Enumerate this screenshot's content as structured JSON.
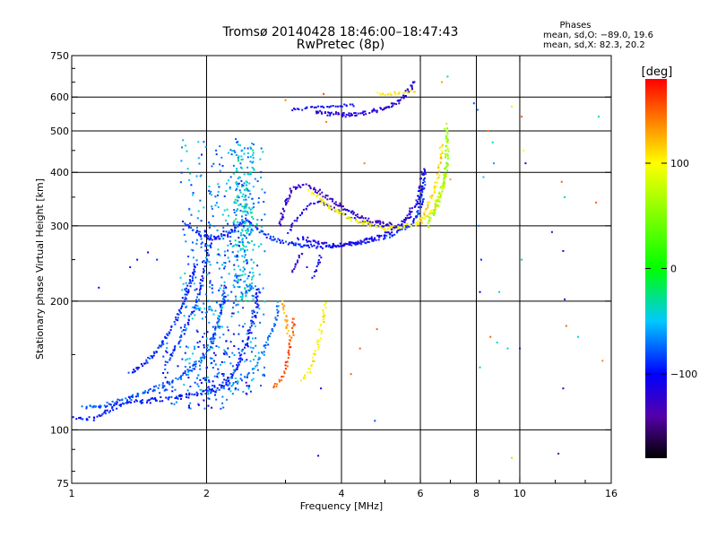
{
  "chart_data": {
    "type": "scatter",
    "title": "Tromsø 20140428 18:46:00–18:47:43",
    "subtitle": "RwPretec (8p)",
    "stats": {
      "heading": "Phases",
      "line1": "mean, sd,O: −89.0, 19.6",
      "line2": "mean, sd,X:  82.3, 20.2"
    },
    "xlabel": "Frequency [MHz]",
    "ylabel": "Stationary phase Virtual Height [km]",
    "x_scale": "log",
    "y_scale": "log",
    "xlim": [
      1,
      16
    ],
    "ylim": [
      75,
      750
    ],
    "grid": true,
    "x_ticks": [
      {
        "v": 1,
        "label": "1"
      },
      {
        "v": 2,
        "label": "2"
      },
      {
        "v": 4,
        "label": "4"
      },
      {
        "v": 6,
        "label": "6"
      },
      {
        "v": 8,
        "label": "8"
      },
      {
        "v": 10,
        "label": "10"
      },
      {
        "v": 16,
        "label": "16"
      }
    ],
    "x_grid": [
      2,
      4,
      6,
      8,
      10
    ],
    "y_ticks": [
      {
        "v": 75,
        "label": "75"
      },
      {
        "v": 100,
        "label": "100"
      },
      {
        "v": 200,
        "label": "200"
      },
      {
        "v": 300,
        "label": "300"
      },
      {
        "v": 400,
        "label": "400"
      },
      {
        "v": 500,
        "label": "500"
      },
      {
        "v": 600,
        "label": "600"
      },
      {
        "v": 750,
        "label": "750"
      }
    ],
    "y_grid": [
      100,
      200,
      300,
      400,
      500,
      600
    ],
    "colorbar": {
      "label": "[deg]",
      "range": [
        -180,
        180
      ],
      "ticks": [
        {
          "v": 100,
          "label": "100"
        },
        {
          "v": 0,
          "label": "0"
        },
        {
          "v": -100,
          "label": "−100"
        }
      ],
      "stops": [
        {
          "v": -180,
          "color": "#000000"
        },
        {
          "v": -140,
          "color": "#5500aa"
        },
        {
          "v": -100,
          "color": "#0000ff"
        },
        {
          "v": -50,
          "color": "#00c8ff"
        },
        {
          "v": 0,
          "color": "#00ff00"
        },
        {
          "v": 100,
          "color": "#ffff00"
        },
        {
          "v": 140,
          "color": "#ff8000"
        },
        {
          "v": 180,
          "color": "#ff0000"
        }
      ]
    },
    "traces": [
      {
        "name": "low-e",
        "phase": -95,
        "width": 2.0,
        "points": [
          [
            1.02,
            106
          ],
          [
            1.1,
            106
          ],
          [
            1.18,
            109
          ],
          [
            1.25,
            113
          ],
          [
            1.35,
            116
          ],
          [
            1.5,
            117
          ],
          [
            1.7,
            119
          ],
          [
            1.9,
            121
          ],
          [
            2.05,
            124
          ],
          [
            2.2,
            128
          ],
          [
            2.3,
            135
          ],
          [
            2.4,
            148
          ],
          [
            2.5,
            170
          ],
          [
            2.58,
            195
          ],
          [
            2.62,
            215
          ]
        ]
      },
      {
        "name": "low-e2",
        "phase": -80,
        "width": 1.6,
        "points": [
          [
            1.06,
            113
          ],
          [
            1.15,
            113
          ],
          [
            1.28,
            117
          ],
          [
            1.42,
            121
          ],
          [
            1.6,
            127
          ],
          [
            1.75,
            133
          ],
          [
            1.9,
            142
          ],
          [
            2.0,
            152
          ],
          [
            2.08,
            168
          ],
          [
            2.15,
            190
          ],
          [
            2.2,
            215
          ]
        ]
      },
      {
        "name": "low-e3",
        "phase": -70,
        "width": 1.3,
        "points": [
          [
            2.0,
            122
          ],
          [
            2.15,
            125
          ],
          [
            2.3,
            128
          ],
          [
            2.45,
            133
          ],
          [
            2.55,
            140
          ],
          [
            2.65,
            150
          ],
          [
            2.75,
            162
          ],
          [
            2.85,
            178
          ],
          [
            2.9,
            200
          ]
        ]
      },
      {
        "name": "diag",
        "phase": -92,
        "width": 1.6,
        "points": [
          [
            1.35,
            135
          ],
          [
            1.48,
            145
          ],
          [
            1.6,
            160
          ],
          [
            1.7,
            178
          ],
          [
            1.78,
            200
          ],
          [
            1.85,
            225
          ],
          [
            1.9,
            245
          ]
        ]
      },
      {
        "name": "diag2",
        "phase": -88,
        "width": 1.3,
        "points": [
          [
            1.62,
            142
          ],
          [
            1.72,
            158
          ],
          [
            1.82,
            178
          ],
          [
            1.9,
            200
          ],
          [
            1.96,
            230
          ],
          [
            2.02,
            260
          ],
          [
            2.06,
            290
          ]
        ]
      },
      {
        "name": "f-left",
        "phase": -92,
        "width": 1.6,
        "points": [
          [
            1.78,
            305
          ],
          [
            1.86,
            295
          ],
          [
            1.95,
            285
          ],
          [
            2.05,
            280
          ],
          [
            2.15,
            282
          ],
          [
            2.25,
            290
          ],
          [
            2.35,
            300
          ],
          [
            2.45,
            310
          ],
          [
            2.55,
            300
          ],
          [
            2.7,
            285
          ],
          [
            2.9,
            276
          ],
          [
            3.2,
            270
          ],
          [
            3.6,
            268
          ],
          [
            4.0,
            270
          ],
          [
            4.5,
            275
          ],
          [
            5.0,
            282
          ],
          [
            5.5,
            293
          ],
          [
            5.8,
            305
          ],
          [
            6.0,
            330
          ],
          [
            6.1,
            370
          ],
          [
            6.15,
            400
          ]
        ]
      },
      {
        "name": "f-o-lower",
        "phase": -112,
        "width": 1.8,
        "points": [
          [
            3.2,
            282
          ],
          [
            3.5,
            275
          ],
          [
            3.8,
            270
          ],
          [
            4.2,
            272
          ],
          [
            4.6,
            278
          ],
          [
            5.0,
            288
          ],
          [
            5.4,
            302
          ],
          [
            5.7,
            320
          ],
          [
            5.9,
            345
          ],
          [
            6.05,
            375
          ],
          [
            6.1,
            410
          ]
        ]
      },
      {
        "name": "f-o-upper",
        "phase": -125,
        "width": 1.6,
        "points": [
          [
            2.9,
            300
          ],
          [
            3.0,
            340
          ],
          [
            3.1,
            365
          ],
          [
            3.3,
            375
          ],
          [
            3.5,
            365
          ],
          [
            3.7,
            350
          ],
          [
            3.9,
            338
          ],
          [
            4.2,
            322
          ],
          [
            4.5,
            312
          ],
          [
            4.8,
            306
          ],
          [
            5.2,
            302
          ]
        ]
      },
      {
        "name": "f-o-upper2",
        "phase": -110,
        "width": 1.3,
        "points": [
          [
            3.05,
            290
          ],
          [
            3.2,
            315
          ],
          [
            3.4,
            335
          ],
          [
            3.6,
            340
          ],
          [
            3.8,
            332
          ],
          [
            4.0,
            322
          ],
          [
            4.3,
            310
          ],
          [
            4.7,
            302
          ],
          [
            5.0,
            298
          ]
        ]
      },
      {
        "name": "f-x",
        "phase": 100,
        "width": 1.8,
        "points": [
          [
            3.4,
            360
          ],
          [
            3.6,
            345
          ],
          [
            3.9,
            325
          ],
          [
            4.2,
            312
          ],
          [
            4.6,
            302
          ],
          [
            5.0,
            296
          ],
          [
            5.5,
            298
          ],
          [
            6.0,
            306
          ],
          [
            6.4,
            325
          ],
          [
            6.7,
            360
          ],
          [
            6.85,
            400
          ]
        ]
      },
      {
        "name": "f-x-a",
        "phase": 60,
        "width": 1.6,
        "points": [
          [
            6.2,
            300
          ],
          [
            6.4,
            320
          ],
          [
            6.6,
            345
          ],
          [
            6.75,
            375
          ],
          [
            6.85,
            410
          ],
          [
            6.9,
            460
          ],
          [
            6.85,
            520
          ]
        ]
      },
      {
        "name": "f-x-b",
        "phase": 115,
        "width": 1.4,
        "points": [
          [
            6.0,
            310
          ],
          [
            6.2,
            330
          ],
          [
            6.4,
            355
          ],
          [
            6.55,
            385
          ],
          [
            6.65,
            420
          ],
          [
            6.7,
            470
          ]
        ]
      },
      {
        "name": "top-o",
        "phase": -118,
        "width": 1.8,
        "points": [
          [
            3.5,
            555
          ],
          [
            3.8,
            548
          ],
          [
            4.1,
            545
          ],
          [
            4.4,
            548
          ],
          [
            4.7,
            555
          ],
          [
            5.0,
            565
          ],
          [
            5.3,
            580
          ],
          [
            5.5,
            600
          ],
          [
            5.7,
            630
          ],
          [
            5.8,
            655
          ]
        ]
      },
      {
        "name": "top-o2",
        "phase": -105,
        "width": 1.2,
        "points": [
          [
            3.1,
            560
          ],
          [
            3.4,
            565
          ],
          [
            3.7,
            570
          ],
          [
            4.0,
            572
          ],
          [
            4.3,
            575
          ]
        ]
      },
      {
        "name": "top-x",
        "phase": 105,
        "width": 1.4,
        "points": [
          [
            4.8,
            612
          ],
          [
            5.1,
            610
          ],
          [
            5.4,
            612
          ],
          [
            5.7,
            620
          ],
          [
            5.9,
            618
          ]
        ]
      },
      {
        "name": "x-low-1",
        "phase": 155,
        "width": 1.5,
        "points": [
          [
            2.8,
            125
          ],
          [
            2.92,
            130
          ],
          [
            3.0,
            138
          ],
          [
            3.05,
            150
          ],
          [
            3.1,
            165
          ],
          [
            3.15,
            185
          ]
        ]
      },
      {
        "name": "x-low-2",
        "phase": 105,
        "width": 1.5,
        "points": [
          [
            3.25,
            130
          ],
          [
            3.4,
            138
          ],
          [
            3.5,
            150
          ],
          [
            3.58,
            165
          ],
          [
            3.63,
            180
          ],
          [
            3.68,
            200
          ]
        ]
      },
      {
        "name": "x-low-3",
        "phase": 125,
        "width": 1.3,
        "points": [
          [
            2.95,
            200
          ],
          [
            3.02,
            180
          ],
          [
            3.05,
            165
          ]
        ]
      },
      {
        "name": "tail-1",
        "phase": -120,
        "width": 1.2,
        "points": [
          [
            3.1,
            235
          ],
          [
            3.2,
            250
          ],
          [
            3.3,
            262
          ]
        ]
      },
      {
        "name": "tail-2",
        "phase": -100,
        "width": 1.2,
        "points": [
          [
            3.45,
            228
          ],
          [
            3.55,
            245
          ],
          [
            3.6,
            258
          ]
        ]
      }
    ],
    "clouds": [
      {
        "name": "cluster-main",
        "phase": -60,
        "density": 380,
        "x": [
          1.75,
          2.7
        ],
        "y": [
          120,
          480
        ]
      },
      {
        "name": "cluster-dense",
        "phase": -50,
        "density": 220,
        "x": [
          2.3,
          2.55
        ],
        "y": [
          200,
          470
        ]
      },
      {
        "name": "cluster-blue",
        "phase": -95,
        "density": 120,
        "x": [
          1.9,
          2.5
        ],
        "y": [
          120,
          300
        ]
      },
      {
        "name": "cluster-low",
        "phase": -85,
        "density": 90,
        "x": [
          1.55,
          2.3
        ],
        "y": [
          112,
          160
        ]
      }
    ],
    "isolated_points": [
      [
        1.48,
        260,
        -100
      ],
      [
        1.55,
        250,
        -90
      ],
      [
        1.35,
        240,
        -95
      ],
      [
        1.15,
        215,
        -100
      ],
      [
        1.4,
        250,
        -105
      ],
      [
        3.65,
        610,
        160
      ],
      [
        3.0,
        590,
        140
      ],
      [
        6.7,
        650,
        130
      ],
      [
        6.9,
        670,
        -40
      ],
      [
        7.9,
        580,
        -80
      ],
      [
        8.05,
        560,
        -70
      ],
      [
        8.5,
        500,
        140
      ],
      [
        8.7,
        470,
        -40
      ],
      [
        8.75,
        420,
        -60
      ],
      [
        9.6,
        570,
        80
      ],
      [
        10.1,
        540,
        150
      ],
      [
        10.2,
        450,
        100
      ],
      [
        10.3,
        420,
        -110
      ],
      [
        12.4,
        380,
        150
      ],
      [
        12.6,
        350,
        -40
      ],
      [
        14.8,
        340,
        150
      ],
      [
        15.0,
        540,
        -30
      ],
      [
        11.8,
        290,
        -140
      ],
      [
        12.5,
        262,
        -110
      ],
      [
        10.1,
        250,
        -40
      ],
      [
        9.0,
        210,
        -40
      ],
      [
        12.6,
        202,
        -120
      ],
      [
        12.7,
        175,
        150
      ],
      [
        13.5,
        165,
        -40
      ],
      [
        15.3,
        145,
        140
      ],
      [
        8.6,
        165,
        150
      ],
      [
        8.9,
        160,
        -40
      ],
      [
        9.4,
        155,
        -40
      ],
      [
        10.0,
        155,
        -140
      ],
      [
        12.5,
        125,
        -120
      ],
      [
        12.2,
        88,
        -140
      ],
      [
        9.6,
        86,
        60
      ],
      [
        4.75,
        105,
        -80
      ],
      [
        4.2,
        135,
        150
      ],
      [
        4.8,
        172,
        150
      ],
      [
        4.4,
        155,
        150
      ],
      [
        8.15,
        140,
        -40
      ],
      [
        3.6,
        125,
        -110
      ],
      [
        3.55,
        87,
        -110
      ],
      [
        3.35,
        240,
        -120
      ],
      [
        2.2,
        200,
        -90
      ],
      [
        1.95,
        440,
        -95
      ],
      [
        2.1,
        450,
        -80
      ],
      [
        3.7,
        525,
        140
      ],
      [
        4.5,
        420,
        140
      ],
      [
        8.1,
        300,
        -70
      ],
      [
        8.2,
        250,
        -90
      ],
      [
        8.15,
        210,
        -100
      ],
      [
        8.3,
        390,
        -50
      ],
      [
        7.0,
        385,
        130
      ]
    ]
  }
}
